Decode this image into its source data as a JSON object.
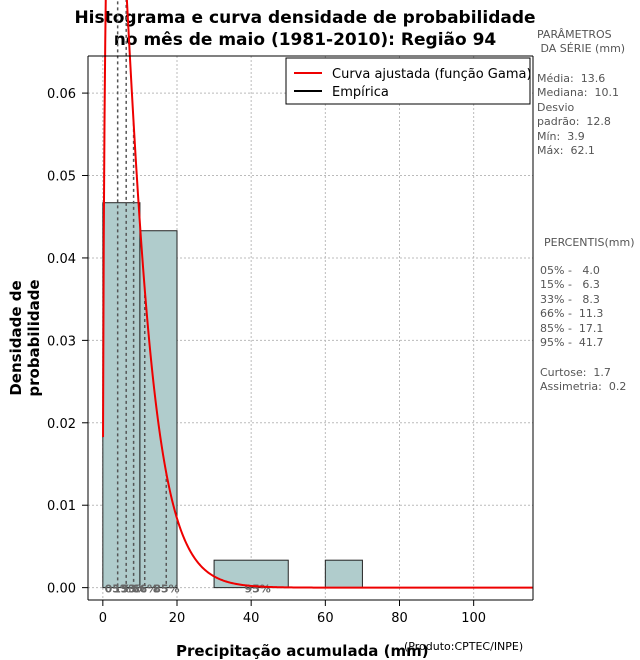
{
  "chart_data": {
    "type": "bar",
    "title_line1": "Histograma e curva densidade de probabilidade",
    "title_line2": "no mês de maio (1981-2010): Região 94",
    "xlabel": "Precipitação acumulada (mm)",
    "ylabel": "Densidade de probabilidade",
    "credit": "(Produto:CPTEC/INPE)",
    "xlim": [
      -4,
      116
    ],
    "ylim": [
      -0.0015,
      0.0645
    ],
    "x_ticks": [
      0,
      20,
      40,
      60,
      80,
      100
    ],
    "y_ticks": [
      0.0,
      0.01,
      0.02,
      0.03,
      0.04,
      0.05,
      0.06
    ],
    "y_tick_labels": [
      "0.00",
      "0.01",
      "0.02",
      "0.03",
      "0.04",
      "0.05",
      "0.06"
    ],
    "bins": [
      {
        "start": 0,
        "end": 10,
        "density": 0.0467
      },
      {
        "start": 10,
        "end": 20,
        "density": 0.0433
      },
      {
        "start": 20,
        "end": 30,
        "density": 0.0
      },
      {
        "start": 30,
        "end": 50,
        "density": 0.00333
      },
      {
        "start": 50,
        "end": 60,
        "density": 0.0
      },
      {
        "start": 60,
        "end": 70,
        "density": 0.00333
      }
    ],
    "gamma_fit": {
      "shape": 1.55,
      "scale": 4.9
    },
    "legend": [
      {
        "label": "Curva ajustada (função Gama)",
        "color": "#ee0000"
      },
      {
        "label": "Empírica",
        "color": "#000000"
      }
    ],
    "percentile_lines": [
      {
        "value": 4.0,
        "label": "05%"
      },
      {
        "value": 6.3,
        "label": "15%"
      },
      {
        "value": 8.3,
        "label": "33%"
      },
      {
        "value": 11.3,
        "label": "66%"
      },
      {
        "value": 17.1,
        "label": "85%"
      },
      {
        "value": 41.7,
        "label": "95%"
      }
    ],
    "colors": {
      "bar_fill": "#b0cccc",
      "curve": "#ee0000",
      "grid": "#bbbbbb",
      "percentile": "#555555"
    }
  },
  "params": {
    "heading": "PARÂMETROS\n DA SÉRIE (mm)",
    "lines": "Média:  13.6\nMediana:  10.1\nDesvio\npadrão:  12.8\nMín:  3.9\nMáx:  62.1"
  },
  "percentis": {
    "heading": "PERCENTIS(mm)",
    "lines": "05% -   4.0\n15% -   6.3\n33% -   8.3\n66% -  11.3\n85% -  17.1\n95% -  41.7"
  },
  "stats": {
    "lines": "Curtose:  1.7\nAssimetria:  0.2"
  }
}
